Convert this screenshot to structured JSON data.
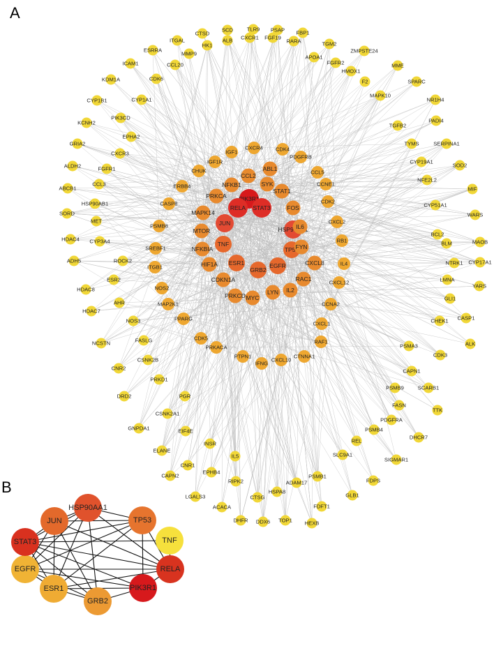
{
  "panel_a": {
    "label": "A",
    "nodes": [
      {
        "id": "PIK3R1",
        "color": "#d7191c"
      },
      {
        "id": "RELA",
        "color": "#de2d26"
      },
      {
        "id": "STAT3",
        "color": "#de2d26"
      },
      {
        "id": "JUN",
        "color": "#e34a33"
      },
      {
        "id": "HSP90AA1",
        "color": "#e34a33"
      },
      {
        "id": "TNF",
        "color": "#e6682c"
      },
      {
        "id": "TP53",
        "color": "#e6682c"
      },
      {
        "id": "ESR1",
        "color": "#e6682c"
      },
      {
        "id": "GRB2",
        "color": "#e6682c"
      },
      {
        "id": "EGFR",
        "color": "#e6682c"
      },
      {
        "id": "MAPK14",
        "color": "#e88a2e"
      },
      {
        "id": "FOS",
        "color": "#e88a2e"
      },
      {
        "id": "IL6",
        "color": "#e88a2e"
      },
      {
        "id": "FYN",
        "color": "#e88a2e"
      },
      {
        "id": "MTOR",
        "color": "#e88a2e"
      },
      {
        "id": "NFKBIA",
        "color": "#e88a2e"
      },
      {
        "id": "LYN",
        "color": "#e88a2e"
      },
      {
        "id": "MYC",
        "color": "#e88a2e"
      },
      {
        "id": "IL2",
        "color": "#e88a2e"
      },
      {
        "id": "RAC1",
        "color": "#e88a2e"
      },
      {
        "id": "CXCL8",
        "color": "#e88a2e"
      },
      {
        "id": "STAT1",
        "color": "#e88a2e"
      },
      {
        "id": "SYK",
        "color": "#e88a2e"
      },
      {
        "id": "ABL1",
        "color": "#e88a2e"
      },
      {
        "id": "CCL2",
        "color": "#e88a2e"
      },
      {
        "id": "NFKB1",
        "color": "#e88a2e"
      },
      {
        "id": "PRKCA",
        "color": "#e88a2e"
      },
      {
        "id": "CDKN1A",
        "color": "#e88a2e"
      },
      {
        "id": "PRKCD",
        "color": "#e88a2e"
      },
      {
        "id": "HIF1A",
        "color": "#e88a2e"
      },
      {
        "id": "IGF1",
        "color": "#eea730"
      },
      {
        "id": "CXCR4",
        "color": "#eea730"
      },
      {
        "id": "CDK4",
        "color": "#eea730"
      },
      {
        "id": "PDGFRB",
        "color": "#eea730"
      },
      {
        "id": "CCL5",
        "color": "#eea730"
      },
      {
        "id": "CCNE1",
        "color": "#eea730"
      },
      {
        "id": "CDK2",
        "color": "#eea730"
      },
      {
        "id": "CXCL2",
        "color": "#eea730"
      },
      {
        "id": "RB1",
        "color": "#eea730"
      },
      {
        "id": "IL4",
        "color": "#eea730"
      },
      {
        "id": "CXCL12",
        "color": "#eea730"
      },
      {
        "id": "CCNA2",
        "color": "#eea730"
      },
      {
        "id": "CXCL1",
        "color": "#eea730"
      },
      {
        "id": "RAF1",
        "color": "#eea730"
      },
      {
        "id": "CTNNA1",
        "color": "#eea730"
      },
      {
        "id": "CXCL10",
        "color": "#eea730"
      },
      {
        "id": "IFNG",
        "color": "#eea730"
      },
      {
        "id": "PTPN1",
        "color": "#eea730"
      },
      {
        "id": "PRKACA",
        "color": "#eea730"
      },
      {
        "id": "CDK5",
        "color": "#eea730"
      },
      {
        "id": "PPARG",
        "color": "#eea730"
      },
      {
        "id": "MAP2K1",
        "color": "#eea730"
      },
      {
        "id": "NOS2",
        "color": "#eea730"
      },
      {
        "id": "ITGB1",
        "color": "#eea730"
      },
      {
        "id": "SREBF1",
        "color": "#eea730"
      },
      {
        "id": "PSMB8",
        "color": "#eea730"
      },
      {
        "id": "CASP8",
        "color": "#eea730"
      },
      {
        "id": "ERBB4",
        "color": "#eea730"
      },
      {
        "id": "CHUK",
        "color": "#eea730"
      },
      {
        "id": "IGF1R",
        "color": "#eea730"
      },
      {
        "id": "CTSD",
        "color": "#f1d737"
      },
      {
        "id": "SCD",
        "color": "#f1d737"
      },
      {
        "id": "TLR9",
        "color": "#f1d737"
      },
      {
        "id": "PSAP",
        "color": "#f1d737"
      },
      {
        "id": "FBP1",
        "color": "#f1d737"
      },
      {
        "id": "ITGAL",
        "color": "#f1d737"
      },
      {
        "id": "HK1",
        "color": "#f1d737"
      },
      {
        "id": "ALB",
        "color": "#f1d737"
      },
      {
        "id": "CXCR1",
        "color": "#f1d737"
      },
      {
        "id": "FGF19",
        "color": "#f1d737"
      },
      {
        "id": "RARA",
        "color": "#f1d737"
      },
      {
        "id": "TGM2",
        "color": "#f1d737"
      },
      {
        "id": "ZMPSTE24",
        "color": "#f1d737"
      },
      {
        "id": "ESRRA",
        "color": "#f1d737"
      },
      {
        "id": "MMP9",
        "color": "#f1d737"
      },
      {
        "id": "APOA1",
        "color": "#f1d737"
      },
      {
        "id": "MME",
        "color": "#f1d737"
      },
      {
        "id": "ICAM1",
        "color": "#f1d737"
      },
      {
        "id": "CCL20",
        "color": "#f1d737"
      },
      {
        "id": "FGFR2",
        "color": "#f1d737"
      },
      {
        "id": "SPARC",
        "color": "#f1d737"
      },
      {
        "id": "KDM1A",
        "color": "#f1d737"
      },
      {
        "id": "CDK6",
        "color": "#f1d737"
      },
      {
        "id": "HMOX1",
        "color": "#f1d737"
      },
      {
        "id": "NR1H4",
        "color": "#f1d737"
      },
      {
        "id": "CYP1B1",
        "color": "#f1d737"
      },
      {
        "id": "CYP1A1",
        "color": "#f1d737"
      },
      {
        "id": "F2",
        "color": "#f1d737"
      },
      {
        "id": "MAPK10",
        "color": "#f1d737"
      },
      {
        "id": "PIK3CD",
        "color": "#f1d737"
      },
      {
        "id": "KCNH2",
        "color": "#f1d737"
      },
      {
        "id": "PADI4",
        "color": "#f1d737"
      },
      {
        "id": "EPHA2",
        "color": "#f1d737"
      },
      {
        "id": "TGFB2",
        "color": "#f1d737"
      },
      {
        "id": "GRIA2",
        "color": "#f1d737"
      },
      {
        "id": "TYMS",
        "color": "#f1d737"
      },
      {
        "id": "SERPINA1",
        "color": "#f1d737"
      },
      {
        "id": "CXCR3",
        "color": "#f1d737"
      },
      {
        "id": "ALDH2",
        "color": "#f1d737"
      },
      {
        "id": "FGFR1",
        "color": "#f1d737"
      },
      {
        "id": "CYP19A1",
        "color": "#f1d737"
      },
      {
        "id": "SOD2",
        "color": "#f1d737"
      },
      {
        "id": "ABCB1",
        "color": "#f1d737"
      },
      {
        "id": "CCL3",
        "color": "#f1d737"
      },
      {
        "id": "NFE2L2",
        "color": "#f1d737"
      },
      {
        "id": "MIF",
        "color": "#f1d737"
      },
      {
        "id": "HSP90AB1",
        "color": "#f1d737"
      },
      {
        "id": "SORD",
        "color": "#f1d737"
      },
      {
        "id": "CYP51A1",
        "color": "#f1d737"
      },
      {
        "id": "WARS",
        "color": "#f1d737"
      },
      {
        "id": "MET",
        "color": "#f1d737"
      },
      {
        "id": "BCL2",
        "color": "#f1d737"
      },
      {
        "id": "HDAC4",
        "color": "#f1d737"
      },
      {
        "id": "CYP3A4",
        "color": "#f1d737"
      },
      {
        "id": "BLM",
        "color": "#f1d737"
      },
      {
        "id": "MAOB",
        "color": "#f1d737"
      },
      {
        "id": "ADH5",
        "color": "#f1d737"
      },
      {
        "id": "ROCK2",
        "color": "#f1d737"
      },
      {
        "id": "NTRK1",
        "color": "#f1d737"
      },
      {
        "id": "CYP17A1",
        "color": "#f1d737"
      },
      {
        "id": "ESR2",
        "color": "#f1d737"
      },
      {
        "id": "LMNA",
        "color": "#f1d737"
      },
      {
        "id": "HDAC8",
        "color": "#f1d737"
      },
      {
        "id": "YARS",
        "color": "#f1d737"
      },
      {
        "id": "AHR",
        "color": "#f1d737"
      },
      {
        "id": "GLI1",
        "color": "#f1d737"
      },
      {
        "id": "HDAC7",
        "color": "#f1d737"
      },
      {
        "id": "NOS3",
        "color": "#f1d737"
      },
      {
        "id": "CASP1",
        "color": "#f1d737"
      },
      {
        "id": "CHEK1",
        "color": "#f1d737"
      },
      {
        "id": "ALK",
        "color": "#f1d737"
      },
      {
        "id": "NCSTN",
        "color": "#f1d737"
      },
      {
        "id": "FASLG",
        "color": "#f1d737"
      },
      {
        "id": "PSMA3",
        "color": "#f1d737"
      },
      {
        "id": "CDK3",
        "color": "#f1d737"
      },
      {
        "id": "CSNK2B",
        "color": "#f1d737"
      },
      {
        "id": "CNR2",
        "color": "#f1d737"
      },
      {
        "id": "CAPN1",
        "color": "#f1d737"
      },
      {
        "id": "PRKD1",
        "color": "#f1d737"
      },
      {
        "id": "PSMB9",
        "color": "#f1d737"
      },
      {
        "id": "SCARB1",
        "color": "#f1d737"
      },
      {
        "id": "DRD2",
        "color": "#f1d737"
      },
      {
        "id": "PGR",
        "color": "#f1d737"
      },
      {
        "id": "FASN",
        "color": "#f1d737"
      },
      {
        "id": "TTK",
        "color": "#f1d737"
      },
      {
        "id": "CSNK2A1",
        "color": "#f1d737"
      },
      {
        "id": "PDGFRA",
        "color": "#f1d737"
      },
      {
        "id": "GNPDA1",
        "color": "#f1d737"
      },
      {
        "id": "EIF4E",
        "color": "#f1d737"
      },
      {
        "id": "PSMB4",
        "color": "#f1d737"
      },
      {
        "id": "DHCR7",
        "color": "#f1d737"
      },
      {
        "id": "REL",
        "color": "#f1d737"
      },
      {
        "id": "ELANE",
        "color": "#f1d737"
      },
      {
        "id": "INSR",
        "color": "#f1d737"
      },
      {
        "id": "SLC9A1",
        "color": "#f1d737"
      },
      {
        "id": "SIGMAR1",
        "color": "#f1d737"
      },
      {
        "id": "CNR1",
        "color": "#f1d737"
      },
      {
        "id": "IL5",
        "color": "#f1d737"
      },
      {
        "id": "EPHB4",
        "color": "#f1d737"
      },
      {
        "id": "PSMB1",
        "color": "#f1d737"
      },
      {
        "id": "CAPN2",
        "color": "#f1d737"
      },
      {
        "id": "RIPK2",
        "color": "#f1d737"
      },
      {
        "id": "ADAM17",
        "color": "#f1d737"
      },
      {
        "id": "FDPS",
        "color": "#f1d737"
      },
      {
        "id": "HSPA8",
        "color": "#f1d737"
      },
      {
        "id": "LGALS3",
        "color": "#f1d737"
      },
      {
        "id": "CTSG",
        "color": "#f1d737"
      },
      {
        "id": "FDFT1",
        "color": "#f1d737"
      },
      {
        "id": "GLB1",
        "color": "#f1d737"
      },
      {
        "id": "ACACA",
        "color": "#f1d737"
      },
      {
        "id": "DHFR",
        "color": "#f1d737"
      },
      {
        "id": "DDX6",
        "color": "#f1d737"
      },
      {
        "id": "TOP1",
        "color": "#f1d737"
      },
      {
        "id": "HEXB",
        "color": "#f1d737"
      }
    ]
  },
  "panel_b": {
    "label": "B",
    "nodes": [
      {
        "id": "HSP90AA1",
        "color": "#e0522c"
      },
      {
        "id": "TP53",
        "color": "#e6742e"
      },
      {
        "id": "TNF",
        "color": "#f6e03c"
      },
      {
        "id": "RELA",
        "color": "#d8331f"
      },
      {
        "id": "PIK3R1",
        "color": "#d7191c"
      },
      {
        "id": "GRB2",
        "color": "#ec9a33"
      },
      {
        "id": "ESR1",
        "color": "#efab33"
      },
      {
        "id": "EGFR",
        "color": "#f0b335"
      },
      {
        "id": "STAT3",
        "color": "#d9311f"
      },
      {
        "id": "JUN",
        "color": "#e3692b"
      }
    ],
    "edges": [
      [
        "JUN",
        "HSP90AA1"
      ],
      [
        "JUN",
        "STAT3"
      ],
      [
        "JUN",
        "EGFR"
      ],
      [
        "JUN",
        "ESR1"
      ],
      [
        "JUN",
        "TP53"
      ],
      [
        "JUN",
        "RELA"
      ],
      [
        "JUN",
        "GRB2"
      ],
      [
        "HSP90AA1",
        "TP53"
      ],
      [
        "HSP90AA1",
        "STAT3"
      ],
      [
        "HSP90AA1",
        "EGFR"
      ],
      [
        "HSP90AA1",
        "ESR1"
      ],
      [
        "HSP90AA1",
        "GRB2"
      ],
      [
        "HSP90AA1",
        "RELA"
      ],
      [
        "TP53",
        "STAT3"
      ],
      [
        "TP53",
        "ESR1"
      ],
      [
        "TP53",
        "EGFR"
      ],
      [
        "TP53",
        "PIK3R1"
      ],
      [
        "TP53",
        "RELA"
      ],
      [
        "TNF",
        "STAT3"
      ],
      [
        "TNF",
        "RELA"
      ],
      [
        "STAT3",
        "RELA"
      ],
      [
        "STAT3",
        "ESR1"
      ],
      [
        "STAT3",
        "EGFR"
      ],
      [
        "STAT3",
        "GRB2"
      ],
      [
        "STAT3",
        "PIK3R1"
      ],
      [
        "RELA",
        "ESR1"
      ],
      [
        "RELA",
        "EGFR"
      ],
      [
        "RELA",
        "PIK3R1"
      ],
      [
        "EGFR",
        "ESR1"
      ],
      [
        "EGFR",
        "GRB2"
      ],
      [
        "EGFR",
        "PIK3R1"
      ],
      [
        "ESR1",
        "GRB2"
      ],
      [
        "ESR1",
        "PIK3R1"
      ],
      [
        "GRB2",
        "PIK3R1"
      ]
    ]
  }
}
